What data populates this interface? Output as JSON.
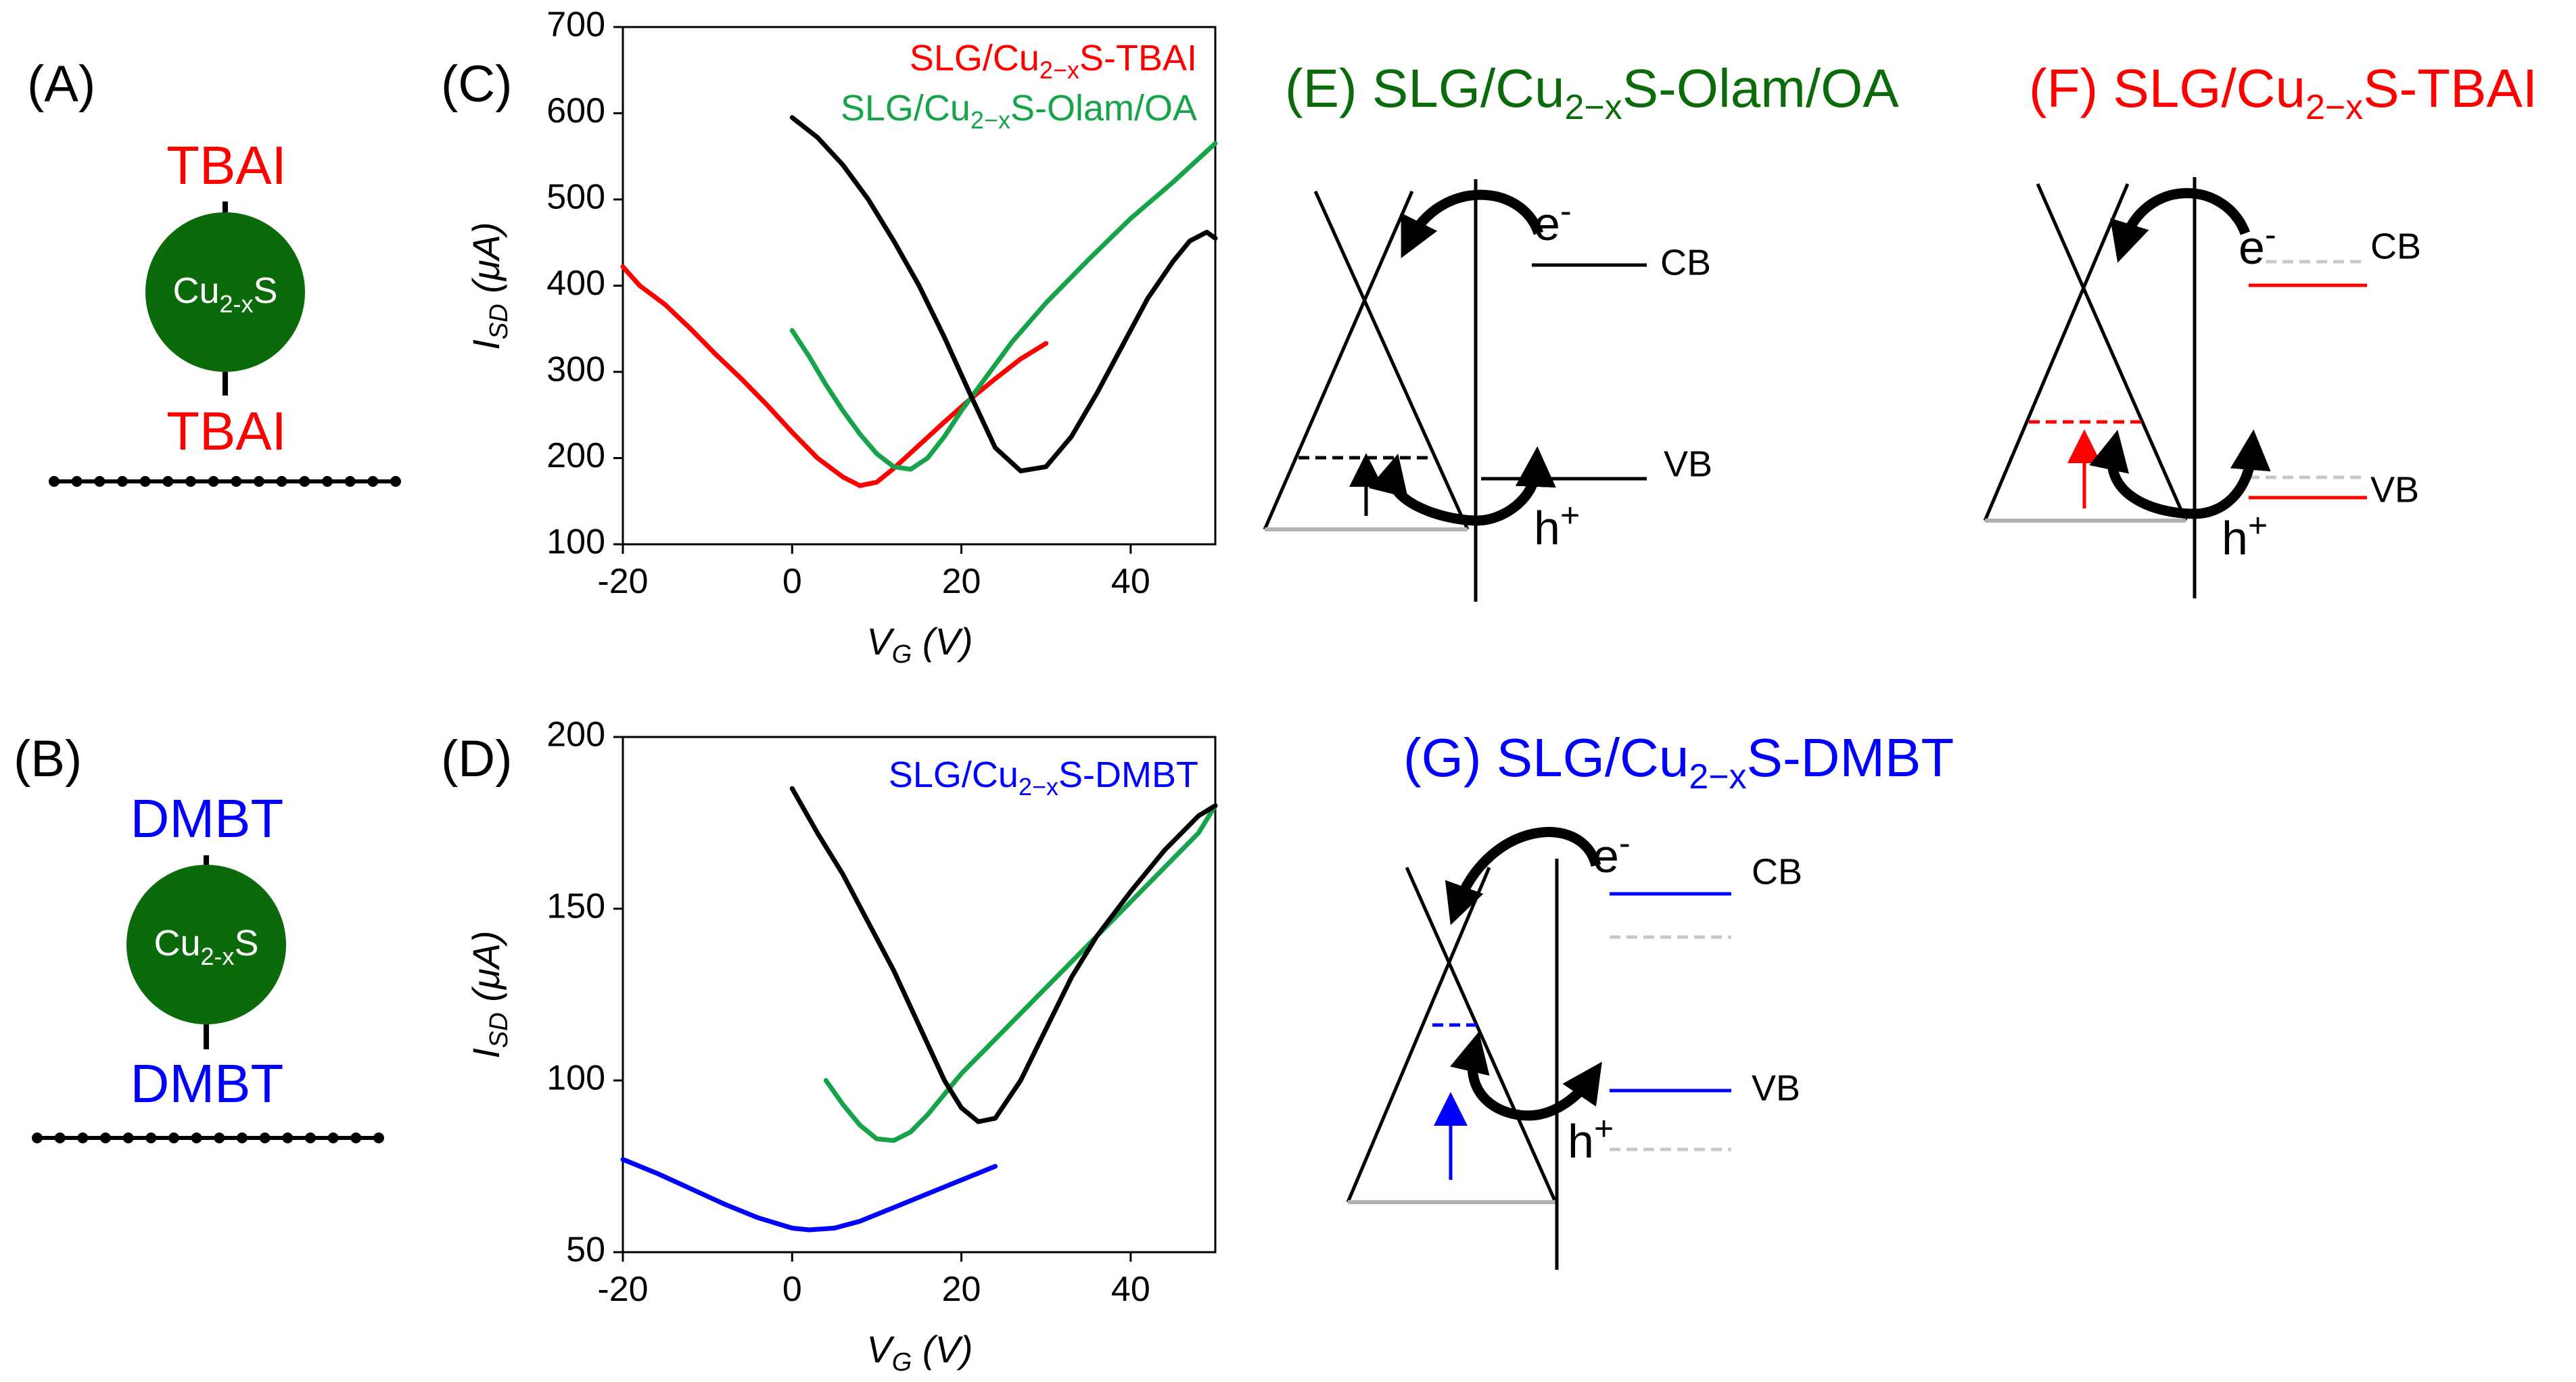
{
  "colors": {
    "red": "#ff0000",
    "green": "#16a34a",
    "darkgreen": "#0b6b0b",
    "blue": "#0000ff",
    "black": "#000000",
    "gray": "#b3b3b3",
    "lightgray": "#c8c8c8"
  },
  "panelA": {
    "tag": "(A)",
    "ligand_top": "TBAI",
    "ligand_bottom": "TBAI",
    "core_main": "Cu",
    "core_sub": "2-x",
    "core_end": "S"
  },
  "panelB": {
    "tag": "(B)",
    "ligand_top": "DMBT",
    "ligand_bottom": "DMBT",
    "core_main": "Cu",
    "core_sub": "2-x",
    "core_end": "S"
  },
  "chart_data": [
    {
      "type": "line",
      "tag": "(C)",
      "xlabel_main": "V",
      "xlabel_sub": "G",
      "xlabel_end": " (V)",
      "ylabel_main": "I",
      "ylabel_sub": "SD",
      "ylabel_end": " (μA)",
      "xlim": [
        -20,
        50
      ],
      "ylim": [
        100,
        700
      ],
      "xticks": [
        -20,
        0,
        20,
        40
      ],
      "xtick_labels": [
        "-20",
        "0",
        "20",
        "40"
      ],
      "yticks": [
        100,
        200,
        300,
        400,
        500,
        600,
        700
      ],
      "ytick_labels": [
        "100",
        "200",
        "300",
        "400",
        "500",
        "600",
        "700"
      ],
      "legend": [
        {
          "text": "SLG/Cu",
          "sub": "2−x",
          "end": "S-TBAI",
          "color": "#ff0000"
        },
        {
          "text": "SLG/Cu",
          "sub": "2−x",
          "end": "S-Olam/OA",
          "color": "#16a34a"
        }
      ],
      "series": [
        {
          "name": "SLG/Cu2-xS-TBAI",
          "color": "#ff0000",
          "x": [
            -20,
            -18,
            -15,
            -12,
            -9,
            -6,
            -3,
            0,
            3,
            6,
            8,
            10,
            12,
            15,
            18,
            21,
            24,
            27,
            30
          ],
          "y": [
            422,
            400,
            378,
            350,
            320,
            292,
            262,
            230,
            200,
            178,
            168,
            172,
            188,
            215,
            242,
            268,
            292,
            315,
            333
          ]
        },
        {
          "name": "SLG/Cu2-xS-Olam/OA",
          "color": "#16a34a",
          "x": [
            0,
            2,
            4,
            6,
            8,
            10,
            12,
            14,
            16,
            18,
            20,
            23,
            26,
            30,
            35,
            40,
            45,
            50
          ],
          "y": [
            348,
            318,
            285,
            255,
            228,
            205,
            190,
            187,
            200,
            225,
            255,
            295,
            335,
            380,
            430,
            478,
            520,
            565
          ]
        },
        {
          "name": "SLG",
          "color": "#000000",
          "x": [
            0,
            3,
            6,
            9,
            12,
            15,
            18,
            21,
            24,
            27,
            30,
            33,
            36,
            39,
            42,
            45,
            47,
            49,
            50
          ],
          "y": [
            595,
            572,
            540,
            500,
            452,
            400,
            340,
            275,
            212,
            185,
            190,
            225,
            275,
            330,
            385,
            428,
            452,
            462,
            455
          ]
        }
      ]
    },
    {
      "type": "line",
      "tag": "(D)",
      "xlabel_main": "V",
      "xlabel_sub": "G",
      "xlabel_end": " (V)",
      "ylabel_main": "I",
      "ylabel_sub": "SD",
      "ylabel_end": " (μA)",
      "xlim": [
        -20,
        50
      ],
      "ylim": [
        50,
        200
      ],
      "xticks": [
        -20,
        0,
        20,
        40
      ],
      "xtick_labels": [
        "-20",
        "0",
        "20",
        "40"
      ],
      "yticks": [
        50,
        100,
        150,
        200
      ],
      "ytick_labels": [
        "50",
        "100",
        "150",
        "200"
      ],
      "legend": [
        {
          "text": "SLG/Cu",
          "sub": "2−x",
          "end": "S-DMBT",
          "color": "#0000ff"
        }
      ],
      "series": [
        {
          "name": "SLG/Cu2-xS-DMBT",
          "color": "#0000ff",
          "x": [
            -20,
            -16,
            -12,
            -8,
            -4,
            0,
            2,
            5,
            8,
            12,
            16,
            20,
            24
          ],
          "y": [
            77,
            73,
            68.5,
            64,
            60,
            57,
            56.5,
            57,
            59,
            63,
            67,
            71,
            75
          ]
        },
        {
          "name": "SLG/Cu2-xS-Olam/OA",
          "color": "#16a34a",
          "x": [
            4,
            6,
            8,
            10,
            12,
            14,
            16,
            18,
            20,
            24,
            28,
            32,
            36,
            40,
            44,
            48,
            50
          ],
          "y": [
            100,
            93,
            87,
            83,
            82.5,
            85,
            90,
            96,
            102,
            112,
            122,
            132,
            142,
            152,
            162,
            172,
            180
          ]
        },
        {
          "name": "SLG",
          "color": "#000000",
          "x": [
            0,
            3,
            6,
            9,
            12,
            15,
            18,
            20,
            22,
            24,
            27,
            30,
            33,
            36,
            40,
            44,
            48,
            50
          ],
          "y": [
            185,
            172,
            160,
            146,
            132,
            116,
            100,
            92,
            88,
            89,
            100,
            115,
            130,
            142,
            155,
            167,
            177,
            180
          ]
        }
      ]
    }
  ],
  "panelE": {
    "title": "(E) SLG/Cu",
    "title_sub": "2−x",
    "title_end": "S-Olam/OA",
    "cb": "CB",
    "vb": "VB",
    "e": "e",
    "e_sup": "-",
    "h": "h",
    "h_sup": "+"
  },
  "panelF": {
    "title": "(F) SLG/Cu",
    "title_sub": "2−x",
    "title_end": "S-TBAI",
    "cb": "CB",
    "vb": "VB",
    "e": "e",
    "e_sup": "-",
    "h": "h",
    "h_sup": "+"
  },
  "panelG": {
    "title": "(G) SLG/Cu",
    "title_sub": "2−x",
    "title_end": "S-DMBT",
    "cb": "CB",
    "vb": "VB",
    "e": "e",
    "e_sup": "-",
    "h": "h",
    "h_sup": "+"
  }
}
